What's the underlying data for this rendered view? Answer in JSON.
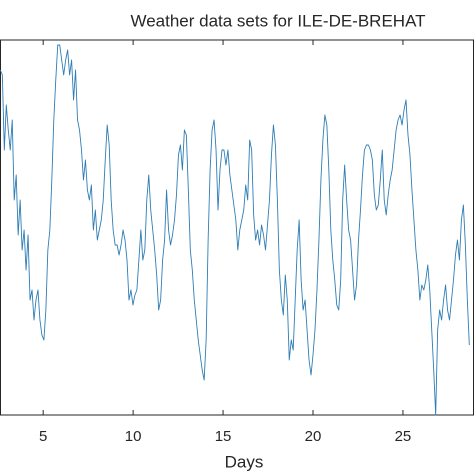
{
  "chart_data": {
    "type": "line",
    "title": "Weather data sets for ILE-DE-BREHAT",
    "x_label": "Days",
    "xlim": [
      2.6,
      28.95
    ],
    "xticks": [
      5,
      10,
      15,
      20,
      25
    ],
    "ylim": [
      0,
      375
    ],
    "x": [
      2.62,
      2.73,
      2.84,
      2.95,
      3.06,
      3.17,
      3.28,
      3.39,
      3.5,
      3.61,
      3.72,
      3.83,
      3.94,
      4.05,
      4.16,
      4.27,
      4.38,
      4.49,
      4.6,
      4.71,
      4.82,
      4.93,
      5.04,
      5.15,
      5.26,
      5.37,
      5.48,
      5.59,
      5.7,
      5.81,
      5.92,
      6.03,
      6.14,
      6.25,
      6.36,
      6.47,
      6.58,
      6.69,
      6.8,
      6.91,
      7.02,
      7.13,
      7.24,
      7.35,
      7.46,
      7.57,
      7.68,
      7.79,
      7.9,
      8.01,
      8.12,
      8.23,
      8.34,
      8.45,
      8.56,
      8.67,
      8.78,
      8.89,
      9,
      9.11,
      9.22,
      9.33,
      9.44,
      9.55,
      9.66,
      9.77,
      9.88,
      9.99,
      10.1,
      10.21,
      10.32,
      10.43,
      10.54,
      10.65,
      10.76,
      10.87,
      10.98,
      11.09,
      11.2,
      11.31,
      11.42,
      11.53,
      11.64,
      11.75,
      11.86,
      11.97,
      12.08,
      12.19,
      12.3,
      12.41,
      12.52,
      12.63,
      12.74,
      12.85,
      12.96,
      13.07,
      13.18,
      13.29,
      13.4,
      13.51,
      13.62,
      13.73,
      13.84,
      13.95,
      14.06,
      14.17,
      14.28,
      14.39,
      14.5,
      14.61,
      14.72,
      14.83,
      14.94,
      15.05,
      15.16,
      15.27,
      15.38,
      15.49,
      15.6,
      15.71,
      15.82,
      15.93,
      16.04,
      16.15,
      16.26,
      16.37,
      16.48,
      16.59,
      16.7,
      16.81,
      16.92,
      17.03,
      17.14,
      17.25,
      17.36,
      17.47,
      17.58,
      17.69,
      17.8,
      17.91,
      18.02,
      18.13,
      18.24,
      18.35,
      18.46,
      18.57,
      18.68,
      18.79,
      18.9,
      19.01,
      19.12,
      19.23,
      19.34,
      19.45,
      19.56,
      19.67,
      19.78,
      19.89,
      20,
      20.11,
      20.22,
      20.33,
      20.44,
      20.55,
      20.66,
      20.77,
      20.88,
      20.99,
      21.1,
      21.21,
      21.32,
      21.43,
      21.54,
      21.65,
      21.76,
      21.87,
      21.98,
      22.09,
      22.2,
      22.31,
      22.42,
      22.53,
      22.64,
      22.75,
      22.86,
      22.97,
      23.08,
      23.19,
      23.3,
      23.41,
      23.52,
      23.63,
      23.74,
      23.85,
      23.96,
      24.07,
      24.18,
      24.29,
      24.4,
      24.51,
      24.62,
      24.73,
      24.84,
      24.95,
      25.06,
      25.17,
      25.28,
      25.39,
      25.5,
      25.61,
      25.72,
      25.83,
      25.94,
      26.05,
      26.16,
      26.27,
      26.38,
      26.49,
      26.6,
      26.71,
      26.82,
      26.93,
      27.04,
      27.15,
      27.26,
      27.37,
      27.48,
      27.59,
      27.7,
      27.81,
      27.92,
      28.03,
      28.14,
      28.25,
      28.36,
      28.47,
      28.58,
      28.69
    ],
    "series": [
      {
        "color": "#2e7db5",
        "values": [
          345,
          340,
          265,
          310,
          285,
          265,
          295,
          215,
          240,
          180,
          215,
          165,
          185,
          145,
          180,
          115,
          125,
          95,
          115,
          125,
          95,
          80,
          75,
          105,
          165,
          185,
          235,
          295,
          335,
          370,
          370,
          355,
          340,
          355,
          365,
          340,
          355,
          315,
          345,
          295,
          285,
          265,
          235,
          255,
          225,
          215,
          230,
          185,
          205,
          175,
          185,
          195,
          215,
          255,
          290,
          270,
          215,
          185,
          170,
          170,
          160,
          170,
          185,
          175,
          155,
          115,
          125,
          110,
          120,
          125,
          155,
          185,
          155,
          165,
          215,
          240,
          205,
          185,
          165,
          140,
          105,
          115,
          155,
          175,
          225,
          185,
          170,
          180,
          195,
          220,
          260,
          270,
          245,
          285,
          280,
          225,
          165,
          145,
          115,
          95,
          75,
          60,
          45,
          35,
          75,
          175,
          245,
          285,
          295,
          265,
          205,
          245,
          265,
          265,
          250,
          265,
          240,
          225,
          210,
          195,
          165,
          185,
          195,
          205,
          230,
          215,
          275,
          265,
          200,
          175,
          185,
          170,
          190,
          180,
          165,
          190,
          215,
          260,
          290,
          270,
          215,
          145,
          115,
          100,
          140,
          115,
          55,
          75,
          65,
          115,
          165,
          195,
          135,
          105,
          115,
          85,
          55,
          40,
          60,
          85,
          125,
          175,
          235,
          275,
          300,
          290,
          245,
          185,
          155,
          135,
          110,
          105,
          135,
          215,
          250,
          215,
          185,
          175,
          145,
          115,
          130,
          175,
          205,
          240,
          265,
          270,
          270,
          265,
          255,
          220,
          205,
          210,
          235,
          265,
          215,
          200,
          220,
          235,
          245,
          265,
          285,
          295,
          300,
          290,
          305,
          315,
          280,
          260,
          225,
          195,
          165,
          145,
          115,
          130,
          125,
          135,
          150,
          125,
          85,
          45,
          0,
          85,
          105,
          95,
          115,
          130,
          105,
          95,
          115,
          135,
          160,
          175,
          155,
          195,
          210,
          170,
          115,
          70
        ]
      }
    ]
  }
}
